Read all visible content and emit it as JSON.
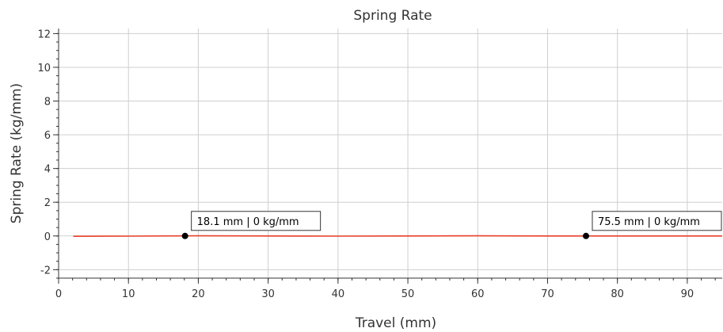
{
  "chart_data": {
    "type": "line",
    "title": "Spring Rate",
    "xlabel": "Travel (mm)",
    "ylabel": "Spring Rate (kg/mm)",
    "xlim": [
      0,
      95
    ],
    "ylim": [
      -2.5,
      12.3
    ],
    "x_ticks": [
      0,
      10,
      20,
      30,
      40,
      50,
      60,
      70,
      80,
      90
    ],
    "x_minor_step": 2,
    "y_ticks": [
      -2,
      0,
      2,
      4,
      6,
      8,
      10,
      12
    ],
    "y_minor_step": 0.5,
    "grid": true,
    "series": [
      {
        "color": "#e8402c",
        "x": [
          2.1,
          10,
          20,
          30,
          40,
          50,
          60,
          70,
          80,
          90,
          95
        ],
        "y": [
          -0.02,
          -0.01,
          0.01,
          0.0,
          -0.01,
          0.0,
          0.01,
          0.0,
          0.0,
          0.0,
          0.0
        ]
      }
    ],
    "markers": [
      {
        "x": 18.1,
        "y": 0,
        "label": "18.1 mm | 0 kg/mm"
      },
      {
        "x": 75.5,
        "y": 0,
        "label": "75.5 mm | 0 kg/mm"
      }
    ]
  }
}
